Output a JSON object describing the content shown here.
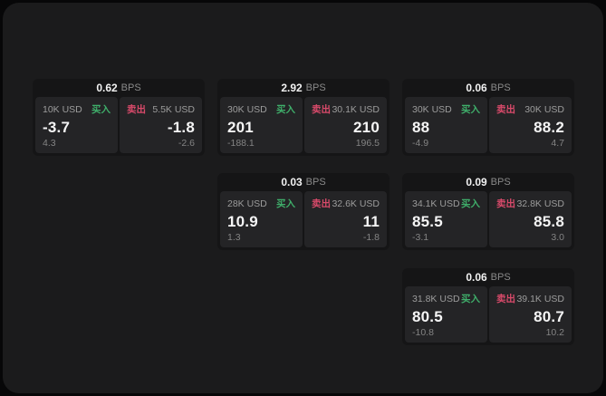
{
  "labels": {
    "bps_unit": "BPS",
    "buy": "买入",
    "sell": "卖出"
  },
  "colors": {
    "buy_green": "#3fae6a",
    "sell_red": "#d84a6a",
    "panel_bg": "#1b1b1c",
    "card_bg": "#151516",
    "tile_bg": "#242426"
  },
  "cards": [
    {
      "row": 1,
      "col": 1,
      "bps": "0.62",
      "buy": {
        "size": "10K USD",
        "price": "-3.7",
        "delta": "4.3"
      },
      "sell": {
        "size": "5.5K USD",
        "price": "-1.8",
        "delta": "-2.6"
      }
    },
    {
      "row": 1,
      "col": 2,
      "bps": "2.92",
      "buy": {
        "size": "30K USD",
        "price": "201",
        "delta": "-188.1"
      },
      "sell": {
        "size": "30.1K USD",
        "price": "210",
        "delta": "196.5"
      }
    },
    {
      "row": 1,
      "col": 3,
      "bps": "0.06",
      "buy": {
        "size": "30K USD",
        "price": "88",
        "delta": "-4.9"
      },
      "sell": {
        "size": "30K USD",
        "price": "88.2",
        "delta": "4.7"
      }
    },
    {
      "row": 2,
      "col": 2,
      "bps": "0.03",
      "buy": {
        "size": "28K USD",
        "price": "10.9",
        "delta": "1.3"
      },
      "sell": {
        "size": "32.6K USD",
        "price": "11",
        "delta": "-1.8"
      }
    },
    {
      "row": 2,
      "col": 3,
      "bps": "0.09",
      "buy": {
        "size": "34.1K USD",
        "price": "85.5",
        "delta": "-3.1"
      },
      "sell": {
        "size": "32.8K USD",
        "price": "85.8",
        "delta": "3.0"
      }
    },
    {
      "row": 3,
      "col": 3,
      "bps": "0.06",
      "buy": {
        "size": "31.8K USD",
        "price": "80.5",
        "delta": "-10.8"
      },
      "sell": {
        "size": "39.1K USD",
        "price": "80.7",
        "delta": "10.2"
      }
    }
  ]
}
